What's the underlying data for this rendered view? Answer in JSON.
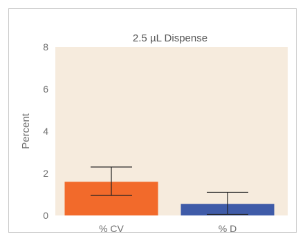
{
  "chart_data": {
    "type": "bar",
    "title": "2.5 µL Dispense",
    "xlabel": "",
    "ylabel": "Percent",
    "ylim": [
      0,
      8
    ],
    "yticks": [
      0,
      2,
      4,
      6,
      8
    ],
    "categories": [
      "% CV",
      "% D"
    ],
    "values": [
      1.6,
      0.55
    ],
    "error_low": [
      0.95,
      0.05
    ],
    "error_high": [
      2.3,
      1.1
    ],
    "bar_colors": [
      "#f26a2b",
      "#3f5ba8"
    ],
    "plot_background": "#f6ebdd",
    "grid": false,
    "legend": "none"
  }
}
